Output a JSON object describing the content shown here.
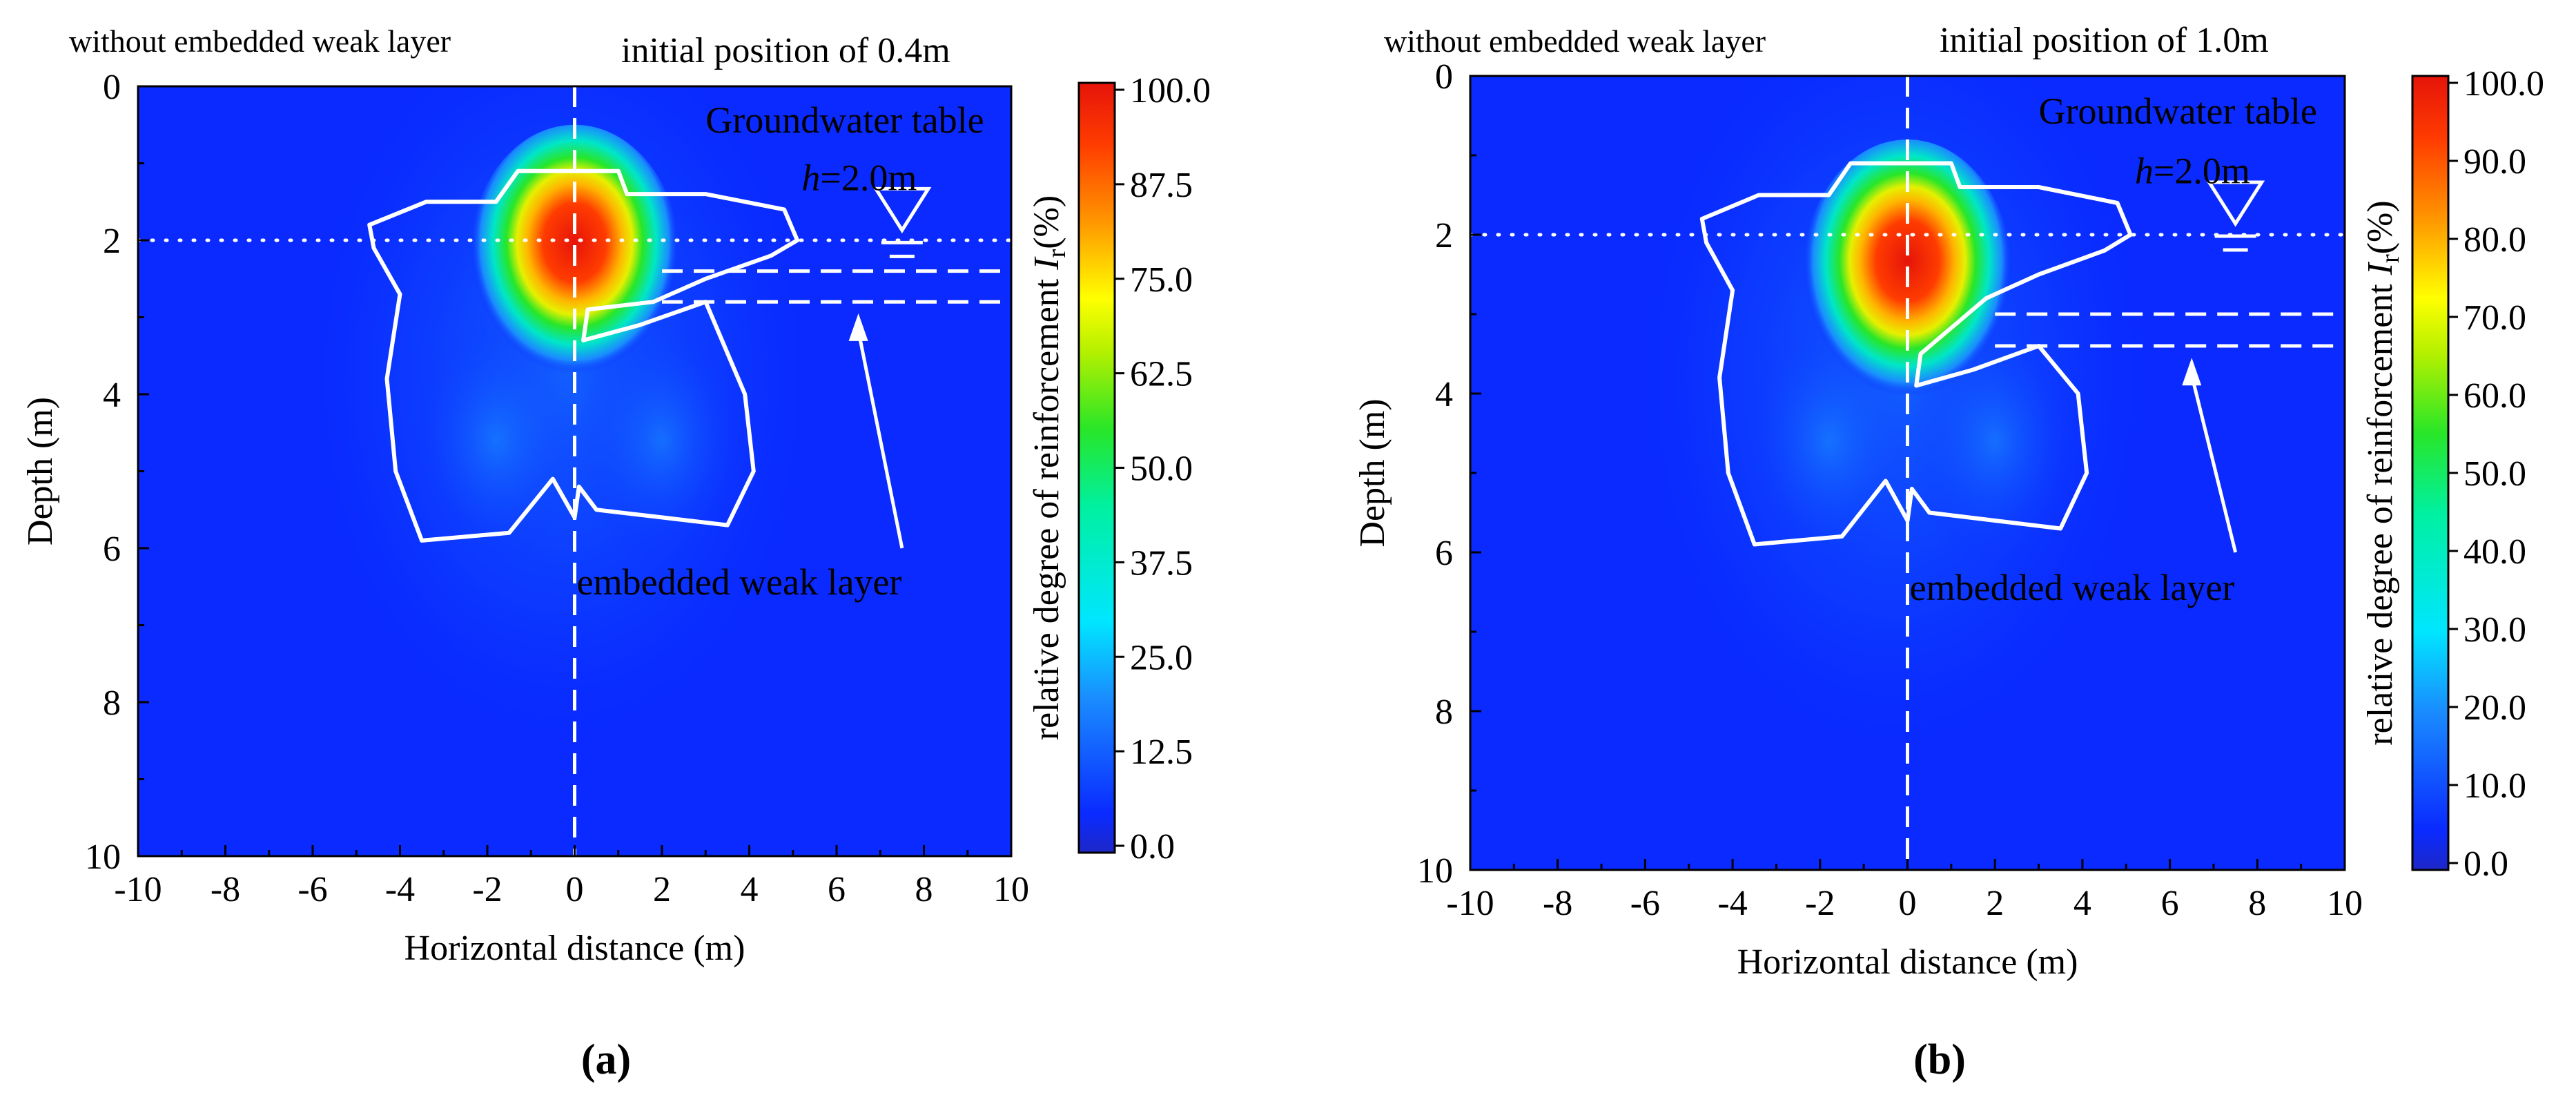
{
  "figure": {
    "panels": [
      {
        "id": "a",
        "panel_label": "(a)",
        "caption_left": "without embedded weak layer",
        "caption_right": "initial position of 0.4m",
        "groundwater_label": "Groundwater table",
        "h_label_italic": "h",
        "h_label_value": "=2.0m",
        "weak_layer_label": "embedded weak layer",
        "xlabel": "Horizontal distance  (m)",
        "ylabel": "Depth (m)",
        "colorbar_label": "relative degree of reinforcement",
        "colorbar_symbol": "I",
        "colorbar_sub": "r",
        "colorbar_unit": "(%)",
        "colorbar_ticks": [
          "0.0",
          "12.5",
          "25.0",
          "37.5",
          "50.0",
          "62.5",
          "75.0",
          "87.5",
          "100.0"
        ],
        "x_ticks": [
          "-10",
          "-8",
          "-6",
          "-4",
          "-2",
          "0",
          "2",
          "4",
          "6",
          "8",
          "10"
        ],
        "y_ticks": [
          "0",
          "2",
          "4",
          "6",
          "8",
          "10"
        ]
      },
      {
        "id": "b",
        "panel_label": "(b)",
        "caption_left": "without embedded weak layer",
        "caption_right": "initial position of 1.0m",
        "groundwater_label": "Groundwater table",
        "h_label_italic": "h",
        "h_label_value": "=2.0m",
        "weak_layer_label": "embedded weak layer",
        "xlabel": "Horizontal distance  (m)",
        "ylabel": "Depth (m)",
        "colorbar_label": "relative degree of reinforcement",
        "colorbar_symbol": "I",
        "colorbar_sub": "r",
        "colorbar_unit": "(%)",
        "colorbar_ticks": [
          "0.0",
          "10.0",
          "20.0",
          "30.0",
          "40.0",
          "50.0",
          "60.0",
          "70.0",
          "80.0",
          "90.0",
          "100.0"
        ],
        "x_ticks": [
          "-10",
          "-8",
          "-6",
          "-4",
          "-2",
          "0",
          "2",
          "4",
          "6",
          "8",
          "10"
        ],
        "y_ticks": [
          "0",
          "2",
          "4",
          "6",
          "8",
          "10"
        ]
      }
    ]
  },
  "chart_data": [
    {
      "type": "heatmap",
      "panel": "a",
      "xlim": [
        -10,
        10
      ],
      "ylim": [
        0,
        10
      ],
      "y_inverted": true,
      "colorbar_range": [
        0,
        100
      ],
      "groundwater_depth_m": 2.0,
      "weak_layer_initial_position_m": 0.4,
      "weak_layer_depths_m": [
        2.4,
        2.8
      ]
    },
    {
      "type": "heatmap",
      "panel": "b",
      "xlim": [
        -10,
        10
      ],
      "ylim": [
        0,
        10
      ],
      "y_inverted": true,
      "colorbar_range": [
        0,
        100
      ],
      "groundwater_depth_m": 2.0,
      "weak_layer_initial_position_m": 1.0,
      "weak_layer_depths_m": [
        3.0,
        3.4
      ]
    }
  ]
}
